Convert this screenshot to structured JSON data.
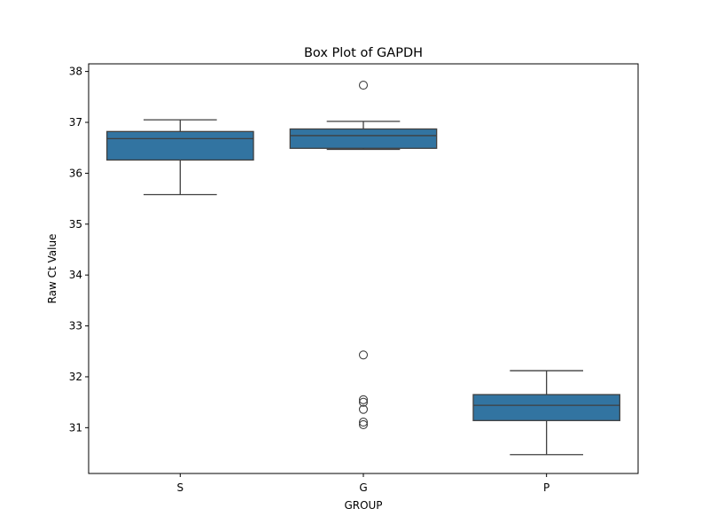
{
  "chart_data": {
    "type": "box",
    "title": "Box Plot of GAPDH",
    "xlabel": "GROUP",
    "ylabel": "Raw Ct Value",
    "ylim": [
      30.1,
      38.15
    ],
    "yticks": [
      31,
      32,
      33,
      34,
      35,
      36,
      37,
      38
    ],
    "categories": [
      "S",
      "G",
      "P"
    ],
    "box_color": "#3274a1",
    "line_color": "#3f3f3f",
    "boxes": [
      {
        "category": "S",
        "whisker_low": 35.58,
        "q1": 36.26,
        "median": 36.68,
        "q3": 36.82,
        "whisker_high": 37.05,
        "outliers": []
      },
      {
        "category": "G",
        "whisker_low": 36.47,
        "q1": 36.49,
        "median": 36.74,
        "q3": 36.87,
        "whisker_high": 37.02,
        "outliers": [
          37.73,
          32.43,
          31.55,
          31.5,
          31.36,
          31.11,
          31.06
        ]
      },
      {
        "category": "P",
        "whisker_low": 30.47,
        "q1": 31.14,
        "median": 31.44,
        "q3": 31.65,
        "whisker_high": 32.12,
        "outliers": []
      }
    ],
    "grid": false,
    "legend": "none"
  }
}
